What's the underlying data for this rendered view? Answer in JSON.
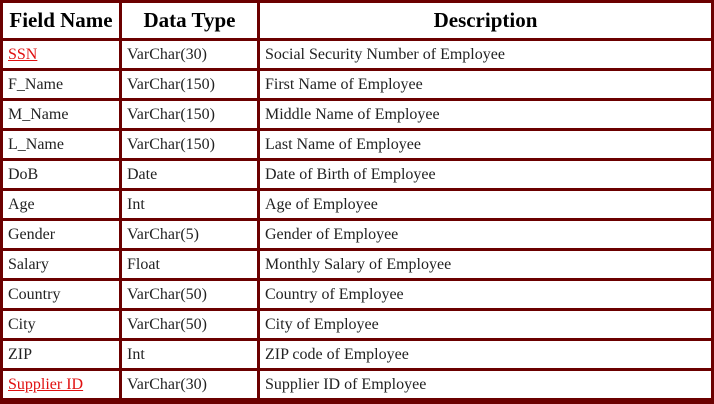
{
  "headers": {
    "field_name": "Field Name",
    "data_type": "Data Type",
    "description": "Description"
  },
  "rows": [
    {
      "field": "SSN",
      "type": "VarChar(30)",
      "desc": "Social Security Number of Employee",
      "link": true
    },
    {
      "field": "F_Name",
      "type": "VarChar(150)",
      "desc": "First Name of Employee",
      "link": false
    },
    {
      "field": "M_Name",
      "type": "VarChar(150)",
      "desc": "Middle Name of Employee",
      "link": false
    },
    {
      "field": "L_Name",
      "type": "VarChar(150)",
      "desc": "Last Name of Employee",
      "link": false
    },
    {
      "field": "DoB",
      "type": "Date",
      "desc": "Date of Birth of Employee",
      "link": false
    },
    {
      "field": "Age",
      "type": "Int",
      "desc": "Age of Employee",
      "link": false
    },
    {
      "field": "Gender",
      "type": "VarChar(5)",
      "desc": "Gender of Employee",
      "link": false
    },
    {
      "field": "Salary",
      "type": "Float",
      "desc": "Monthly Salary of Employee",
      "link": false
    },
    {
      "field": "Country",
      "type": "VarChar(50)",
      "desc": "Country of Employee",
      "link": false
    },
    {
      "field": "City",
      "type": "VarChar(50)",
      "desc": "City of Employee",
      "link": false
    },
    {
      "field": "ZIP",
      "type": "Int",
      "desc": "ZIP code of Employee",
      "link": false
    },
    {
      "field": "Supplier ID",
      "type": "VarChar(30)",
      "desc": "Supplier ID of Employee",
      "link": true
    }
  ],
  "colors": {
    "border": "#6b0000",
    "link": "#e01010",
    "text": "#222222"
  }
}
